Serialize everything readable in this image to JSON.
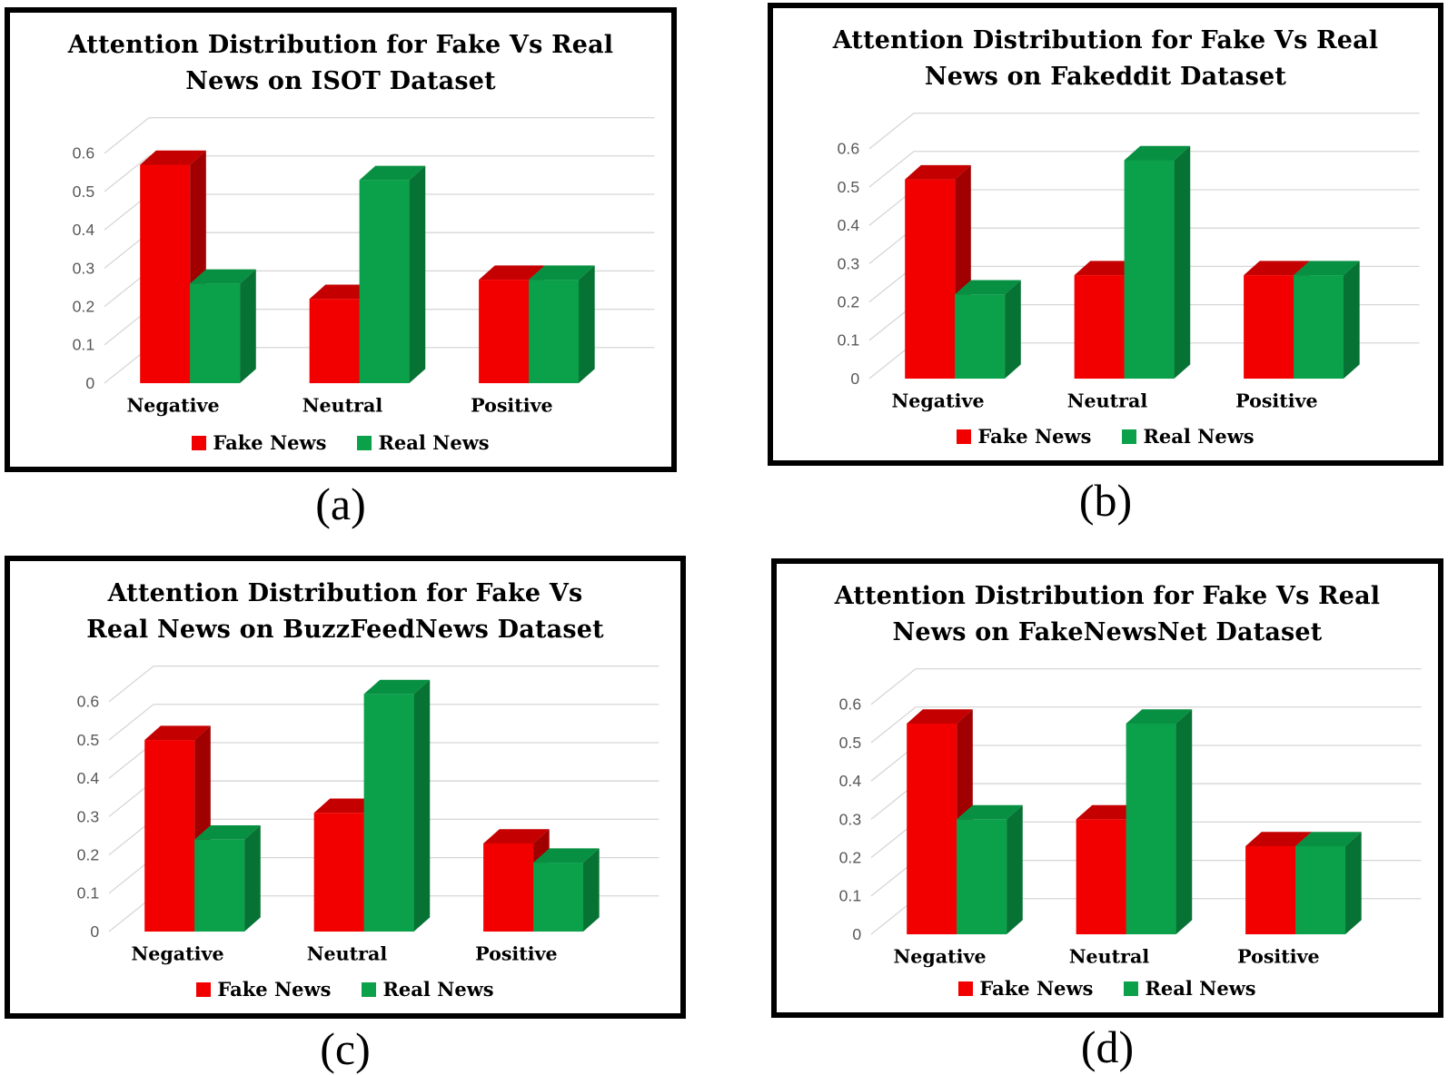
{
  "figure": {
    "description": "Four 3D clustered column charts comparing attention distribution for fake vs real news across sentiment categories on four datasets",
    "background": "#FFFFFF",
    "panel_border_color": "#000000",
    "gridline_color": "#D6D6D6",
    "tick_label_color": "#595959"
  },
  "legend": {
    "fake_label": "Fake News",
    "real_label": "Real News"
  },
  "chart_data": [
    {
      "type": "bar",
      "style": "3d-clustered-column",
      "title": "Attention Distribution for Fake Vs Real News on ISOT Dataset",
      "title_line1": "Attention Distribution for Fake Vs Real",
      "title_line2": "News on ISOT Dataset",
      "caption": "(a)",
      "categories": [
        "Negative",
        "Neutral",
        "Positive"
      ],
      "series": [
        {
          "name": "Fake News",
          "color": "#F20000",
          "color_top": "#C40000",
          "color_side": "#A00000",
          "values": [
            0.57,
            0.22,
            0.27
          ]
        },
        {
          "name": "Real News",
          "color": "#0BA04A",
          "color_top": "#089042",
          "color_side": "#067233",
          "values": [
            0.26,
            0.53,
            0.27
          ]
        }
      ],
      "ylim": [
        0,
        0.6
      ],
      "yticks": [
        "0",
        "0.1",
        "0.2",
        "0.3",
        "0.4",
        "0.5",
        "0.6"
      ],
      "grid": true,
      "legend_position": "bottom"
    },
    {
      "type": "bar",
      "style": "3d-clustered-column",
      "title": "Attention Distribution for Fake Vs Real News on Fakeddit Dataset",
      "title_line1": "Attention Distribution for Fake Vs Real",
      "title_line2": "News on Fakeddit Dataset",
      "caption": "(b)",
      "categories": [
        "Negative",
        "Neutral",
        "Positive"
      ],
      "series": [
        {
          "name": "Fake News",
          "color": "#F20000",
          "color_top": "#C40000",
          "color_side": "#A00000",
          "values": [
            0.52,
            0.27,
            0.27
          ]
        },
        {
          "name": "Real News",
          "color": "#0BA04A",
          "color_top": "#089042",
          "color_side": "#067233",
          "values": [
            0.22,
            0.57,
            0.27
          ]
        }
      ],
      "ylim": [
        0,
        0.6
      ],
      "yticks": [
        "0",
        "0.1",
        "0.2",
        "0.3",
        "0.4",
        "0.5",
        "0.6"
      ],
      "grid": true,
      "legend_position": "bottom"
    },
    {
      "type": "bar",
      "style": "3d-clustered-column",
      "title": "Attention Distribution for Fake Vs Real News on BuzzFeedNews Dataset",
      "title_line1": "Attention Distribution for Fake Vs",
      "title_line2": "Real News on BuzzFeedNews Dataset",
      "caption": "(c)",
      "categories": [
        "Negative",
        "Neutral",
        "Positive"
      ],
      "series": [
        {
          "name": "Fake News",
          "color": "#F20000",
          "color_top": "#C40000",
          "color_side": "#A00000",
          "values": [
            0.5,
            0.31,
            0.23
          ]
        },
        {
          "name": "Real News",
          "color": "#0BA04A",
          "color_top": "#089042",
          "color_side": "#067233",
          "values": [
            0.24,
            0.62,
            0.18
          ]
        }
      ],
      "ylim": [
        0,
        0.6
      ],
      "yticks": [
        "0",
        "0.1",
        "0.2",
        "0.3",
        "0.4",
        "0.5",
        "0.6"
      ],
      "grid": true,
      "legend_position": "bottom"
    },
    {
      "type": "bar",
      "style": "3d-clustered-column",
      "title": "Attention Distribution for Fake Vs Real News on FakeNewsNet Dataset",
      "title_line1": "Attention Distribution for Fake Vs Real",
      "title_line2": "News on FakeNewsNet Dataset",
      "caption": "(d)",
      "categories": [
        "Negative",
        "Neutral",
        "Positive"
      ],
      "series": [
        {
          "name": "Fake News",
          "color": "#F20000",
          "color_top": "#C40000",
          "color_side": "#A00000",
          "values": [
            0.55,
            0.3,
            0.23
          ]
        },
        {
          "name": "Real News",
          "color": "#0BA04A",
          "color_top": "#089042",
          "color_side": "#067233",
          "values": [
            0.3,
            0.55,
            0.23
          ]
        }
      ],
      "ylim": [
        0,
        0.6
      ],
      "yticks": [
        "0",
        "0.1",
        "0.2",
        "0.3",
        "0.4",
        "0.5",
        "0.6"
      ],
      "grid": true,
      "legend_position": "bottom"
    }
  ]
}
